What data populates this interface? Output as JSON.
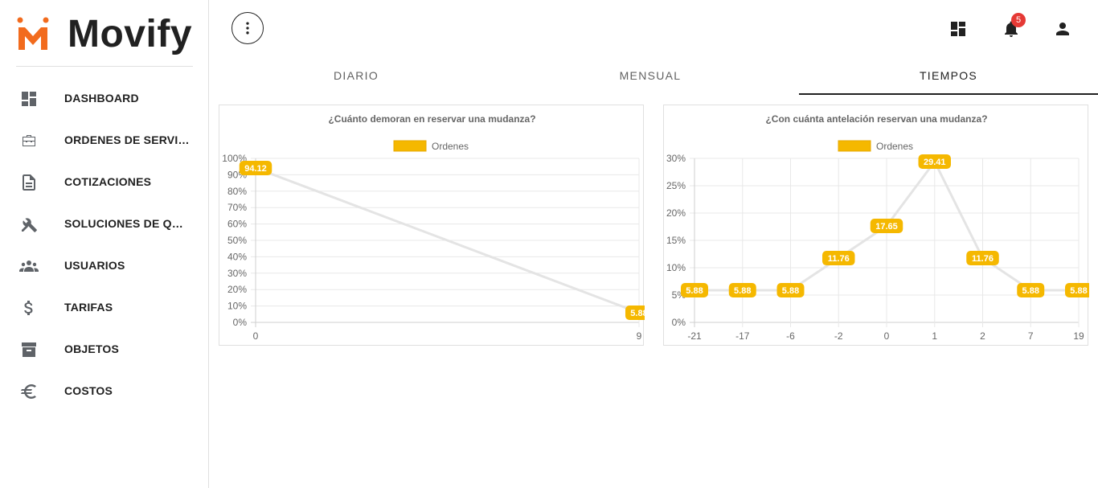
{
  "brand": {
    "name": "Movify",
    "logo_color": "#f26b1d"
  },
  "nav": {
    "items": [
      {
        "label": "DASHBOARD",
        "icon": "dashboard-icon"
      },
      {
        "label": "ORDENES DE SERVICIO",
        "icon": "toolbox-icon"
      },
      {
        "label": "COTIZACIONES",
        "icon": "document-icon"
      },
      {
        "label": "SOLUCIONES DE QUIE...",
        "icon": "tools-icon"
      },
      {
        "label": "USUARIOS",
        "icon": "users-icon"
      },
      {
        "label": "TARIFAS",
        "icon": "dollar-icon"
      },
      {
        "label": "OBJETOS",
        "icon": "archive-icon"
      },
      {
        "label": "COSTOS",
        "icon": "euro-icon"
      }
    ]
  },
  "topbar": {
    "notifications_count": "5",
    "badge_color": "#e53935"
  },
  "tabs": [
    {
      "label": "DIARIO",
      "active": false
    },
    {
      "label": "MENSUAL",
      "active": false
    },
    {
      "label": "TIEMPOS",
      "active": true
    }
  ],
  "chart_data": [
    {
      "type": "line",
      "title": "¿Cuánto demoran en reservar una mudanza?",
      "x": [
        "0",
        "9"
      ],
      "series": [
        {
          "name": "Ordenes",
          "values": [
            94.12,
            5.88
          ]
        }
      ],
      "y_ticks": [
        "100%",
        "90%",
        "80%",
        "70%",
        "60%",
        "50%",
        "40%",
        "30%",
        "20%",
        "10%",
        "0%"
      ],
      "ylim": [
        0,
        100
      ],
      "legend": "top",
      "grid": true,
      "color": "#f5b800"
    },
    {
      "type": "line",
      "title": "¿Con cuánta antelación reservan una mudanza?",
      "x": [
        "-21",
        "-17",
        "-6",
        "-2",
        "0",
        "1",
        "2",
        "7",
        "19"
      ],
      "series": [
        {
          "name": "Ordenes",
          "values": [
            5.88,
            5.88,
            5.88,
            11.76,
            17.65,
            29.41,
            11.76,
            5.88,
            5.88
          ]
        }
      ],
      "y_ticks": [
        "30%",
        "25%",
        "20%",
        "15%",
        "10%",
        "5%",
        "0%"
      ],
      "ylim": [
        0,
        30
      ],
      "legend": "top",
      "grid": true,
      "color": "#f5b800"
    }
  ]
}
